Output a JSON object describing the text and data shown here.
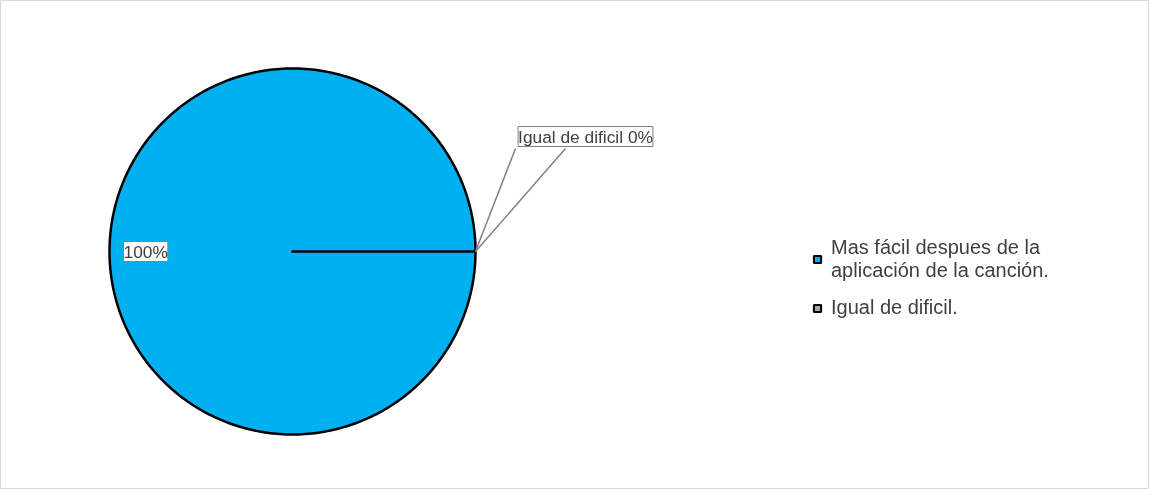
{
  "chart_data": {
    "type": "pie",
    "categories": [
      "Mas fácil despues de la aplicación de la canción.",
      "Igual de dificil."
    ],
    "values": [
      100,
      0
    ],
    "colors": [
      "#00b0f0",
      "#a6a6a6"
    ],
    "value_labels": [
      "100%",
      "Igual de dificil 0%"
    ],
    "legend": "right"
  }
}
